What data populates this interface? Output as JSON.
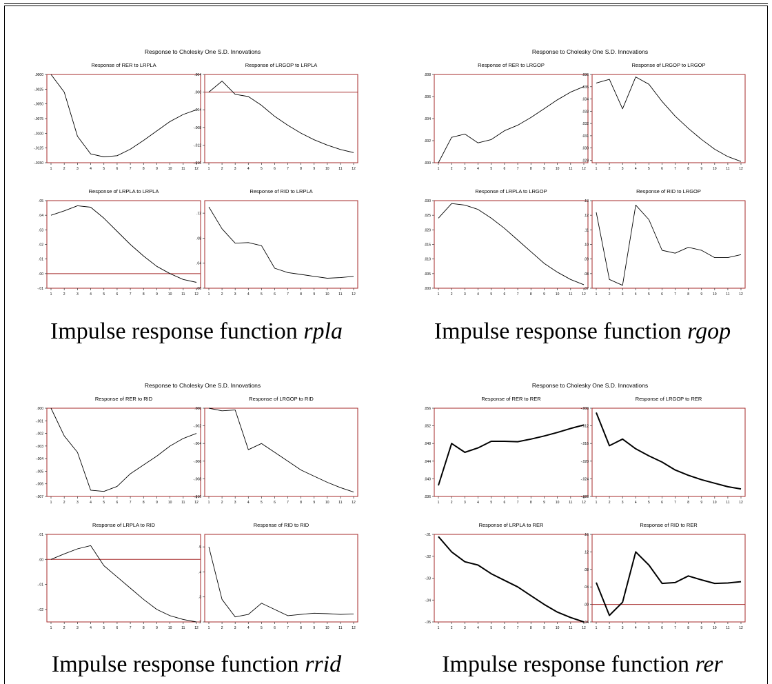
{
  "groups": [
    {
      "heading": "Response to Cholesky One S.D. Innovations",
      "caption_text": "Impulse response function",
      "caption_var": "rpla"
    },
    {
      "heading": "Response to Cholesky One S.D. Innovations",
      "caption_text": "Impulse response function",
      "caption_var": "rgop"
    },
    {
      "heading": "Response to Cholesky One S.D. Innovations",
      "caption_text": "Impulse response function",
      "caption_var": "rrid"
    },
    {
      "heading": "Response to Cholesky One S.D. Innovations",
      "caption_text": "Impulse response function",
      "caption_var": "rer"
    }
  ],
  "chart_data": [
    {
      "type": "line",
      "title": "Response of RER to LRPLA",
      "x": [
        1,
        2,
        3,
        4,
        5,
        6,
        7,
        8,
        9,
        10,
        11,
        12
      ],
      "values": [
        0,
        -0.003,
        -0.0105,
        -0.0135,
        -0.014,
        -0.0138,
        -0.0127,
        -0.0112,
        -0.0096,
        -0.008,
        -0.0068,
        -0.006
      ],
      "ylim": [
        -0.015,
        0
      ],
      "yticks": [
        0,
        -0.0025,
        -0.005,
        -0.0075,
        -0.01,
        -0.0125,
        -0.015
      ],
      "ytick_labels": [
        ".0000",
        "-.0025",
        "-.0050",
        "-.0075",
        "-.0100",
        "-.0125",
        "-.0150"
      ],
      "zero_line": false,
      "heavy": false
    },
    {
      "type": "line",
      "title": "Response of LRGOP to LRPLA",
      "x": [
        1,
        2,
        3,
        4,
        5,
        6,
        7,
        8,
        9,
        10,
        11,
        12
      ],
      "values": [
        0,
        0.0025,
        -0.0005,
        -0.001,
        -0.003,
        -0.0055,
        -0.0075,
        -0.0093,
        -0.0108,
        -0.012,
        -0.013,
        -0.0137
      ],
      "ylim": [
        -0.016,
        0.004
      ],
      "yticks": [
        0.004,
        0,
        -0.004,
        -0.008,
        -0.012,
        -0.016
      ],
      "ytick_labels": [
        ".004",
        ".000",
        "-.004",
        "-.008",
        "-.012",
        "-.016"
      ],
      "zero_line": true,
      "heavy": false
    },
    {
      "type": "line",
      "title": "Response of LRPLA to LRPLA",
      "x": [
        1,
        2,
        3,
        4,
        5,
        6,
        7,
        8,
        9,
        10,
        11,
        12
      ],
      "values": [
        0.04,
        0.043,
        0.0465,
        0.0455,
        0.038,
        0.029,
        0.02,
        0.012,
        0.005,
        0,
        -0.004,
        -0.006
      ],
      "ylim": [
        -0.01,
        0.05
      ],
      "yticks": [
        0.05,
        0.04,
        0.03,
        0.02,
        0.01,
        0,
        -0.01
      ],
      "ytick_labels": [
        ".05",
        ".04",
        ".03",
        ".02",
        ".01",
        ".00",
        "-.01"
      ],
      "zero_line": true,
      "heavy": false
    },
    {
      "type": "line",
      "title": "Response of RID to LRPLA",
      "x": [
        1,
        2,
        3,
        4,
        5,
        6,
        7,
        8,
        9,
        10,
        11,
        12
      ],
      "values": [
        0.13,
        0.095,
        0.072,
        0.073,
        0.068,
        0.032,
        0.025,
        0.022,
        0.019,
        0.016,
        0.017,
        0.019
      ],
      "ylim": [
        0,
        0.14
      ],
      "yticks": [
        0.12,
        0.08,
        0.04,
        0
      ],
      "ytick_labels": [
        ".12",
        ".08",
        ".04",
        ".00"
      ],
      "zero_line": false,
      "heavy": false
    },
    {
      "type": "line",
      "title": "Response of RER to LRGOP",
      "x": [
        1,
        2,
        3,
        4,
        5,
        6,
        7,
        8,
        9,
        10,
        11,
        12
      ],
      "values": [
        0,
        0.0023,
        0.0026,
        0.0018,
        0.0021,
        0.0029,
        0.0034,
        0.0041,
        0.0049,
        0.0057,
        0.0064,
        0.0069
      ],
      "ylim": [
        0,
        0.008
      ],
      "yticks": [
        0.008,
        0.006,
        0.004,
        0.002,
        0
      ],
      "ytick_labels": [
        ".008",
        ".006",
        ".004",
        ".002",
        ".000"
      ],
      "zero_line": false,
      "heavy": false
    },
    {
      "type": "line",
      "title": "Response of LRGOP to LRGOP",
      "x": [
        1,
        2,
        3,
        4,
        5,
        6,
        7,
        8,
        9,
        10,
        11,
        12
      ],
      "values": [
        0.0353,
        0.0356,
        0.0332,
        0.0358,
        0.0352,
        0.0338,
        0.0326,
        0.0316,
        0.0307,
        0.0299,
        0.0293,
        0.0289
      ],
      "ylim": [
        0.0288,
        0.036
      ],
      "yticks": [
        0.036,
        0.035,
        0.034,
        0.033,
        0.032,
        0.031,
        0.03,
        0.029
      ],
      "ytick_labels": [
        ".036",
        ".035",
        ".034",
        ".033",
        ".032",
        ".031",
        ".030",
        ".029"
      ],
      "zero_line": false,
      "heavy": false
    },
    {
      "type": "line",
      "title": "Response of LRPLA to LRGOP",
      "x": [
        1,
        2,
        3,
        4,
        5,
        6,
        7,
        8,
        9,
        10,
        11,
        12
      ],
      "values": [
        0.024,
        0.029,
        0.0285,
        0.027,
        0.024,
        0.0205,
        0.0165,
        0.0125,
        0.0085,
        0.0055,
        0.003,
        0.0012
      ],
      "ylim": [
        0,
        0.03
      ],
      "yticks": [
        0.03,
        0.025,
        0.02,
        0.015,
        0.01,
        0.005,
        0
      ],
      "ytick_labels": [
        ".030",
        ".025",
        ".020",
        ".015",
        ".010",
        ".005",
        ".000"
      ],
      "zero_line": false,
      "heavy": false
    },
    {
      "type": "line",
      "title": "Response of RID to LRGOP",
      "x": [
        1,
        2,
        3,
        4,
        5,
        6,
        7,
        8,
        9,
        10,
        11,
        12
      ],
      "values": [
        0.122,
        0.076,
        0.072,
        0.127,
        0.117,
        0.096,
        0.094,
        0.098,
        0.096,
        0.091,
        0.091,
        0.093
      ],
      "ylim": [
        0.07,
        0.13
      ],
      "yticks": [
        0.13,
        0.12,
        0.11,
        0.1,
        0.09,
        0.08,
        0.07
      ],
      "ytick_labels": [
        ".13",
        ".12",
        ".11",
        ".10",
        ".09",
        ".08",
        ".07"
      ],
      "zero_line": false,
      "heavy": false
    },
    {
      "type": "line",
      "title": "Response of RER to RID",
      "x": [
        1,
        2,
        3,
        4,
        5,
        6,
        7,
        8,
        9,
        10,
        11,
        12
      ],
      "values": [
        0,
        -0.0022,
        -0.0035,
        -0.0065,
        -0.0066,
        -0.0062,
        -0.0052,
        -0.0045,
        -0.0038,
        -0.003,
        -0.0024,
        -0.002
      ],
      "ylim": [
        -0.007,
        0
      ],
      "yticks": [
        0,
        -0.001,
        -0.002,
        -0.003,
        -0.004,
        -0.005,
        -0.006,
        -0.007
      ],
      "ytick_labels": [
        ".000",
        "-.001",
        "-.002",
        "-.003",
        "-.004",
        "-.005",
        "-.006",
        "-.007"
      ],
      "zero_line": false,
      "heavy": false
    },
    {
      "type": "line",
      "title": "Response of LRGOP to RID",
      "x": [
        1,
        2,
        3,
        4,
        5,
        6,
        7,
        8,
        9,
        10,
        11,
        12
      ],
      "values": [
        0,
        -0.0003,
        -0.0002,
        -0.0047,
        -0.004,
        -0.005,
        -0.006,
        -0.007,
        -0.0077,
        -0.0084,
        -0.009,
        -0.0095
      ],
      "ylim": [
        -0.01,
        0
      ],
      "yticks": [
        0,
        -0.002,
        -0.004,
        -0.006,
        -0.008,
        -0.01
      ],
      "ytick_labels": [
        ".000",
        "-.002",
        "-.004",
        "-.006",
        "-.008",
        "-.010"
      ],
      "zero_line": false,
      "heavy": false
    },
    {
      "type": "line",
      "title": "Response of LRPLA to RID",
      "x": [
        1,
        2,
        3,
        4,
        5,
        6,
        7,
        8,
        9,
        10,
        11,
        12
      ],
      "values": [
        0,
        0.0022,
        0.0042,
        0.0055,
        -0.0025,
        -0.007,
        -0.0115,
        -0.016,
        -0.02,
        -0.0225,
        -0.024,
        -0.025
      ],
      "ylim": [
        -0.025,
        0.01
      ],
      "yticks": [
        0.01,
        0,
        -0.01,
        -0.02
      ],
      "ytick_labels": [
        ".01",
        ".00",
        "-.01",
        "-.02"
      ],
      "zero_line": true,
      "heavy": false
    },
    {
      "type": "line",
      "title": "Response of RID to RID",
      "x": [
        1,
        2,
        3,
        4,
        5,
        6,
        7,
        8,
        9,
        10,
        11,
        12
      ],
      "values": [
        0.5,
        0.29,
        0.22,
        0.23,
        0.275,
        0.25,
        0.225,
        0.23,
        0.235,
        0.233,
        0.23,
        0.232
      ],
      "ylim": [
        0.2,
        0.55
      ],
      "yticks": [
        0.5,
        0.4,
        0.3,
        0.2
      ],
      "ytick_labels": [
        ".5",
        ".4",
        ".3",
        ".2"
      ],
      "zero_line": false,
      "heavy": false
    },
    {
      "type": "line",
      "title": "Response of RER to RER",
      "x": [
        1,
        2,
        3,
        4,
        5,
        6,
        7,
        8,
        9,
        10,
        11,
        12
      ],
      "values": [
        0.0385,
        0.048,
        0.046,
        0.047,
        0.0485,
        0.0485,
        0.0484,
        0.049,
        0.0497,
        0.0505,
        0.0514,
        0.0522
      ],
      "ylim": [
        0.036,
        0.056
      ],
      "yticks": [
        0.056,
        0.052,
        0.048,
        0.044,
        0.04,
        0.036
      ],
      "ytick_labels": [
        ".056",
        ".052",
        ".048",
        ".044",
        ".040",
        ".036"
      ],
      "zero_line": false,
      "heavy": true
    },
    {
      "type": "line",
      "title": "Response of LRGOP to RER",
      "x": [
        1,
        2,
        3,
        4,
        5,
        6,
        7,
        8,
        9,
        10,
        11,
        12
      ],
      "values": [
        -0.009,
        -0.0165,
        -0.015,
        -0.0172,
        -0.0188,
        -0.0202,
        -0.022,
        -0.0232,
        -0.0242,
        -0.025,
        -0.0258,
        -0.0263
      ],
      "ylim": [
        -0.028,
        -0.008
      ],
      "yticks": [
        -0.008,
        -0.012,
        -0.016,
        -0.02,
        -0.024,
        -0.028
      ],
      "ytick_labels": [
        "-.008",
        "-.012",
        "-.016",
        "-.020",
        "-.024",
        "-.028"
      ],
      "zero_line": false,
      "heavy": true
    },
    {
      "type": "line",
      "title": "Response of LRPLA to RER",
      "x": [
        1,
        2,
        3,
        4,
        5,
        6,
        7,
        8,
        9,
        10,
        11,
        12
      ],
      "values": [
        -0.011,
        -0.018,
        -0.0225,
        -0.024,
        -0.028,
        -0.031,
        -0.034,
        -0.038,
        -0.042,
        -0.0455,
        -0.048,
        -0.05
      ],
      "ylim": [
        -0.05,
        -0.01
      ],
      "yticks": [
        -0.01,
        -0.02,
        -0.03,
        -0.04,
        -0.05
      ],
      "ytick_labels": [
        "-.01",
        "-.02",
        "-.03",
        "-.04",
        "-.05"
      ],
      "zero_line": false,
      "heavy": true
    },
    {
      "type": "line",
      "title": "Response of RID to RER",
      "x": [
        1,
        2,
        3,
        4,
        5,
        6,
        7,
        8,
        9,
        10,
        11,
        12
      ],
      "values": [
        0.05,
        -0.025,
        0.005,
        0.12,
        0.09,
        0.048,
        0.05,
        0.065,
        0.056,
        0.048,
        0.049,
        0.052
      ],
      "ylim": [
        -0.04,
        0.16
      ],
      "yticks": [
        0.16,
        0.12,
        0.08,
        0.04,
        0,
        -0.04
      ],
      "ytick_labels": [
        ".16",
        ".12",
        ".08",
        ".04",
        ".00",
        "-.04"
      ],
      "zero_line": true,
      "heavy": true
    }
  ]
}
